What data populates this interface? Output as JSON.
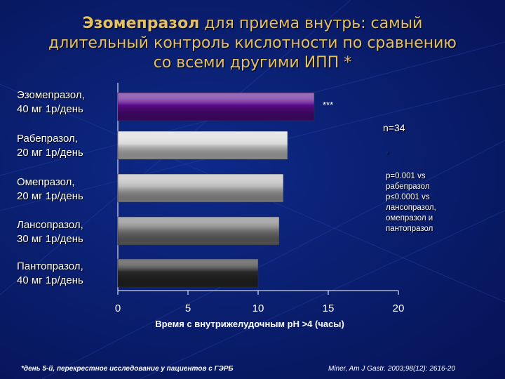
{
  "slide": {
    "title_bold": "Эзомепразол",
    "title_line1_rest": " для приема внутрь: самый",
    "title_line2": "длительный контроль кислотности по сравнению",
    "title_line3": "со всеми другими ИПП *",
    "n_label": "n=34",
    "note": {
      "star": "*",
      "lines": [
        "p=0.001 vs",
        "рабепразол",
        "p≤0.0001 vs",
        "лансопразол,",
        "омепразол и",
        "пантопразол"
      ]
    },
    "footnote": "*день 5-й, перекрестное исследование у пациентов с ГЭРБ",
    "citation": "Miner, Am J Gastr. 2003;98(12): 2616-20"
  },
  "categories_display": [
    {
      "line1": "Эзомепразол,",
      "line2": "40 мг 1р/день"
    },
    {
      "line1": "Рабепразол,",
      "line2": "20 мг 1р/день"
    },
    {
      "line1": "Омепразол,",
      "line2": "20 мг 1р/день"
    },
    {
      "line1": "Лансопразол,",
      "line2": "30 мг 1р/день"
    },
    {
      "line1": "Пантопразол,",
      "line2": "40 мг 1р/день"
    }
  ],
  "chart_data": {
    "type": "bar",
    "orientation": "horizontal",
    "categories": [
      "Эзомепразол, 40 мг 1р/день",
      "Рабепразол, 20 мг 1р/день",
      "Омепразол, 20 мг 1р/день",
      "Лансопразол, 30 мг 1р/день",
      "Пантопразол, 40 мг 1р/день"
    ],
    "values": [
      14.0,
      12.1,
      11.8,
      11.5,
      10.0
    ],
    "bar_colors": [
      "#5a0a8c",
      "#d8d8d8",
      "#b8b8b8",
      "#7a7a7a",
      "#2a2a2a"
    ],
    "xlabel": "Время с внутрижелудочным  рН >4 (часы)",
    "xlim": [
      0,
      20
    ],
    "xticks": [
      "0",
      "5",
      "10",
      "15",
      "20"
    ],
    "annotation": "***",
    "annotation_category": "Эзомепразол, 40 мг 1р/день",
    "grid": false
  }
}
